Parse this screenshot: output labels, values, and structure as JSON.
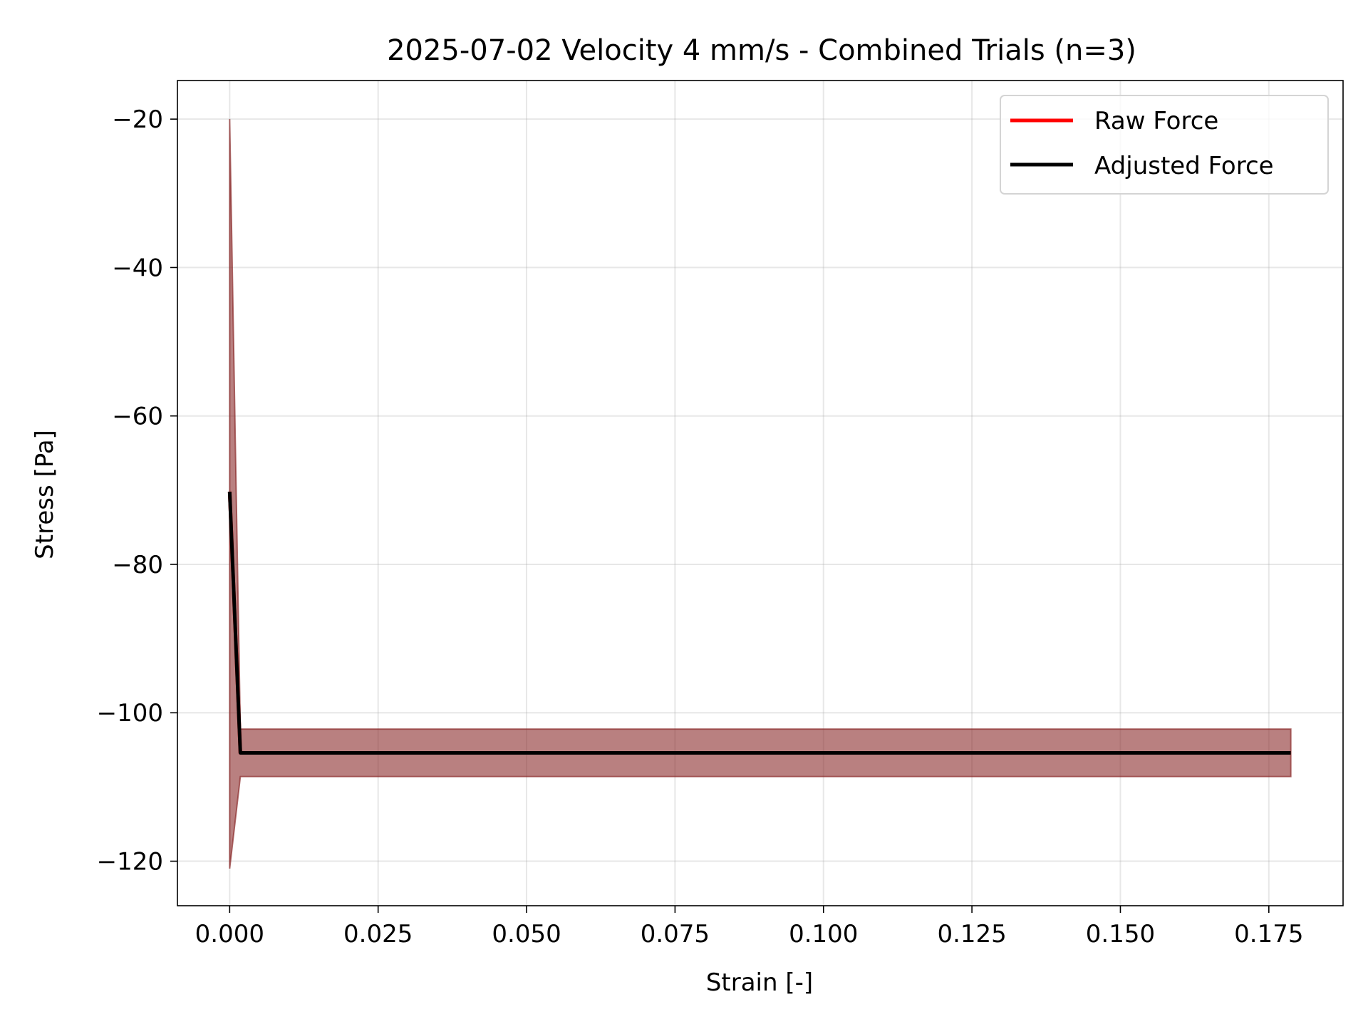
{
  "chart_data": {
    "type": "line",
    "title": "2025-07-02 Velocity 4 mm/s - Combined Trials (n=3)",
    "xlabel": "Strain [-]",
    "ylabel": "Stress [Pa]",
    "xlim": [
      -0.0088,
      0.1875
    ],
    "ylim": [
      -126.0,
      -14.8
    ],
    "xticks": [
      0.0,
      0.025,
      0.05,
      0.075,
      0.1,
      0.125,
      0.15,
      0.175
    ],
    "xtick_labels": [
      "0.000",
      "0.025",
      "0.050",
      "0.075",
      "0.100",
      "0.125",
      "0.150",
      "0.175"
    ],
    "yticks": [
      -20,
      -40,
      -60,
      -80,
      -100,
      -120
    ],
    "ytick_labels": [
      "−20",
      "−40",
      "−60",
      "−80",
      "−100",
      "−120"
    ],
    "grid": true,
    "legend_placement": "top-right",
    "series": [
      {
        "name": "Raw Force",
        "color": "#ff0000",
        "x": [
          0.0,
          0.0018,
          0.1787
        ],
        "y": [
          -70.2,
          -105.4,
          -105.4
        ]
      },
      {
        "name": "Adjusted Force",
        "color": "#000000",
        "x": [
          0.0,
          0.0018,
          0.1787
        ],
        "y": [
          -70.2,
          -105.4,
          -105.4
        ]
      }
    ],
    "band": {
      "color": "#8b2c2c",
      "x": [
        0.0,
        0.0018,
        0.1787
      ],
      "upper": [
        -20.0,
        -102.2,
        -102.2
      ],
      "lower": [
        -121.0,
        -108.6,
        -108.6
      ]
    }
  }
}
